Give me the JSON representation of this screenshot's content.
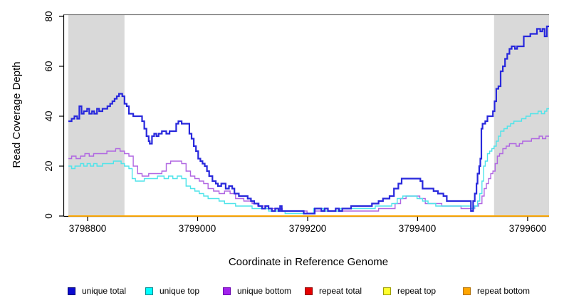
{
  "figure": {
    "xlabel": "Coordinate in Reference Genome",
    "ylabel": "Read Coverage Depth"
  },
  "legend": {
    "items": [
      {
        "label": "unique total",
        "fill": "#0a0ad0",
        "border": "#000070"
      },
      {
        "label": "unique top",
        "fill": "#00ffff",
        "border": "#00868b"
      },
      {
        "label": "unique bottom",
        "fill": "#a222ec",
        "border": "#6a00b0"
      },
      {
        "label": "repeat total",
        "fill": "#e60000",
        "border": "#8b0000"
      },
      {
        "label": "repeat top",
        "fill": "#ffff2e",
        "border": "#9c9c00"
      },
      {
        "label": "repeat bottom",
        "fill": "#ffa500",
        "border": "#b06e00"
      }
    ]
  },
  "chart_data": {
    "type": "line",
    "step": true,
    "title": "",
    "xlabel": "Coordinate in Reference Genome",
    "ylabel": "Read Coverage Depth",
    "xlim": [
      3798765,
      3799639
    ],
    "ylim": [
      0,
      80
    ],
    "grid": false,
    "legend_position": "bottom",
    "x_tick_values": [
      3798800,
      3799000,
      3799200,
      3799400,
      3799600
    ],
    "x_tick_labels": [
      "3798800",
      "3799000",
      "3799200",
      "3799400",
      "3799600"
    ],
    "y_tick_values": [
      0,
      20,
      40,
      60,
      80
    ],
    "y_tick_labels": [
      "0",
      "20",
      "40",
      "60",
      "80"
    ],
    "band_color": "#d9d9d9",
    "frame_top_color": "#808080",
    "axis_color": "#000000",
    "shaded_regions": [
      {
        "x0": 3798765,
        "x1": 3798867
      },
      {
        "x0": 3799539,
        "x1": 3799639
      }
    ],
    "series": [
      {
        "name": "repeat total",
        "color": "#e60000",
        "width": 1.4,
        "points": [
          [
            3798765,
            0
          ],
          [
            3799639,
            0
          ]
        ]
      },
      {
        "name": "repeat top",
        "color": "#ffff00",
        "width": 1.4,
        "points": [
          [
            3798765,
            0
          ],
          [
            3799639,
            0
          ]
        ]
      },
      {
        "name": "repeat bottom",
        "color": "#ffa500",
        "width": 1.6,
        "points": [
          [
            3798765,
            0
          ],
          [
            3799639,
            0
          ]
        ]
      },
      {
        "name": "unique bottom",
        "color": "#b066e2",
        "width": 1.4,
        "points": [
          [
            3798765,
            23
          ],
          [
            3798771,
            24
          ],
          [
            3798779,
            23
          ],
          [
            3798787,
            24
          ],
          [
            3798795,
            25
          ],
          [
            3798803,
            24
          ],
          [
            3798811,
            25
          ],
          [
            3798835,
            26
          ],
          [
            3798851,
            27
          ],
          [
            3798859,
            26
          ],
          [
            3798867,
            25
          ],
          [
            3798875,
            24
          ],
          [
            3798883,
            20
          ],
          [
            3798891,
            17
          ],
          [
            3798899,
            16
          ],
          [
            3798911,
            17
          ],
          [
            3798935,
            18
          ],
          [
            3798943,
            21
          ],
          [
            3798951,
            22
          ],
          [
            3798971,
            21
          ],
          [
            3798979,
            18
          ],
          [
            3798987,
            16
          ],
          [
            3798995,
            15
          ],
          [
            3799003,
            14
          ],
          [
            3799011,
            13
          ],
          [
            3799019,
            11
          ],
          [
            3799029,
            10
          ],
          [
            3799039,
            9
          ],
          [
            3799049,
            10
          ],
          [
            3799059,
            9
          ],
          [
            3799069,
            7
          ],
          [
            3799084,
            6
          ],
          [
            3799099,
            5
          ],
          [
            3799109,
            4
          ],
          [
            3799124,
            3
          ],
          [
            3799154,
            2
          ],
          [
            3799199,
            1
          ],
          [
            3799211,
            2
          ],
          [
            3799329,
            3
          ],
          [
            3799359,
            5
          ],
          [
            3799369,
            7
          ],
          [
            3799379,
            8
          ],
          [
            3799404,
            7
          ],
          [
            3799414,
            5
          ],
          [
            3799444,
            4
          ],
          [
            3799479,
            3
          ],
          [
            3799504,
            4
          ],
          [
            3799511,
            5
          ],
          [
            3799517,
            8
          ],
          [
            3799521,
            11
          ],
          [
            3799525,
            13
          ],
          [
            3799529,
            15
          ],
          [
            3799533,
            17
          ],
          [
            3799537,
            18
          ],
          [
            3799541,
            21
          ],
          [
            3799545,
            24
          ],
          [
            3799549,
            25
          ],
          [
            3799555,
            27
          ],
          [
            3799561,
            28
          ],
          [
            3799567,
            29
          ],
          [
            3799579,
            28
          ],
          [
            3799585,
            29
          ],
          [
            3799591,
            30
          ],
          [
            3799607,
            31
          ],
          [
            3799621,
            32
          ],
          [
            3799627,
            31
          ],
          [
            3799633,
            32
          ],
          [
            3799639,
            32
          ]
        ]
      },
      {
        "name": "unique top",
        "color": "#4fe4ea",
        "width": 1.4,
        "points": [
          [
            3798765,
            20
          ],
          [
            3798771,
            19
          ],
          [
            3798777,
            20
          ],
          [
            3798787,
            21
          ],
          [
            3798793,
            20
          ],
          [
            3798799,
            21
          ],
          [
            3798805,
            20
          ],
          [
            3798811,
            21
          ],
          [
            3798817,
            20
          ],
          [
            3798827,
            21
          ],
          [
            3798847,
            22
          ],
          [
            3798861,
            21
          ],
          [
            3798867,
            20
          ],
          [
            3798875,
            19
          ],
          [
            3798881,
            15
          ],
          [
            3798887,
            14
          ],
          [
            3798903,
            15
          ],
          [
            3798927,
            16
          ],
          [
            3798939,
            15
          ],
          [
            3798947,
            16
          ],
          [
            3798955,
            15
          ],
          [
            3798963,
            16
          ],
          [
            3798971,
            15
          ],
          [
            3798979,
            12
          ],
          [
            3798987,
            11
          ],
          [
            3798995,
            10
          ],
          [
            3799003,
            9
          ],
          [
            3799011,
            8
          ],
          [
            3799019,
            7
          ],
          [
            3799039,
            6
          ],
          [
            3799049,
            5
          ],
          [
            3799069,
            4
          ],
          [
            3799099,
            3
          ],
          [
            3799129,
            2
          ],
          [
            3799159,
            1
          ],
          [
            3799211,
            3
          ],
          [
            3799229,
            2
          ],
          [
            3799259,
            3
          ],
          [
            3799323,
            4
          ],
          [
            3799353,
            5
          ],
          [
            3799363,
            7
          ],
          [
            3799373,
            8
          ],
          [
            3799399,
            7
          ],
          [
            3799409,
            6
          ],
          [
            3799419,
            5
          ],
          [
            3799433,
            4
          ],
          [
            3799497,
            3
          ],
          [
            3799503,
            4
          ],
          [
            3799509,
            6
          ],
          [
            3799513,
            9
          ],
          [
            3799517,
            14
          ],
          [
            3799520,
            20
          ],
          [
            3799523,
            22
          ],
          [
            3799527,
            25
          ],
          [
            3799531,
            26
          ],
          [
            3799535,
            27
          ],
          [
            3799539,
            28
          ],
          [
            3799543,
            30
          ],
          [
            3799547,
            32
          ],
          [
            3799551,
            34
          ],
          [
            3799557,
            35
          ],
          [
            3799563,
            36
          ],
          [
            3799569,
            37
          ],
          [
            3799575,
            38
          ],
          [
            3799589,
            39
          ],
          [
            3799597,
            40
          ],
          [
            3799605,
            41
          ],
          [
            3799619,
            42
          ],
          [
            3799625,
            41
          ],
          [
            3799631,
            42
          ],
          [
            3799635,
            43
          ],
          [
            3799639,
            43
          ]
        ]
      },
      {
        "name": "unique total",
        "color": "#2828dc",
        "width": 2.2,
        "points": [
          [
            3798765,
            38
          ],
          [
            3798771,
            39
          ],
          [
            3798776,
            40
          ],
          [
            3798781,
            39
          ],
          [
            3798785,
            44
          ],
          [
            3798789,
            41
          ],
          [
            3798793,
            42
          ],
          [
            3798799,
            43
          ],
          [
            3798803,
            41
          ],
          [
            3798808,
            42
          ],
          [
            3798812,
            41
          ],
          [
            3798817,
            43
          ],
          [
            3798821,
            42
          ],
          [
            3798827,
            43
          ],
          [
            3798836,
            44
          ],
          [
            3798841,
            45
          ],
          [
            3798845,
            46
          ],
          [
            3798849,
            47
          ],
          [
            3798853,
            48
          ],
          [
            3798857,
            49
          ],
          [
            3798863,
            48
          ],
          [
            3798867,
            45
          ],
          [
            3798871,
            44
          ],
          [
            3798875,
            41
          ],
          [
            3798883,
            40
          ],
          [
            3798899,
            38
          ],
          [
            3798903,
            35
          ],
          [
            3798907,
            32
          ],
          [
            3798911,
            30
          ],
          [
            3798913,
            29
          ],
          [
            3798917,
            32
          ],
          [
            3798921,
            33
          ],
          [
            3798925,
            32
          ],
          [
            3798929,
            33
          ],
          [
            3798935,
            34
          ],
          [
            3798943,
            33
          ],
          [
            3798949,
            34
          ],
          [
            3798961,
            37
          ],
          [
            3798965,
            38
          ],
          [
            3798971,
            37
          ],
          [
            3798985,
            33
          ],
          [
            3798989,
            31
          ],
          [
            3798993,
            28
          ],
          [
            3798997,
            26
          ],
          [
            3799001,
            23
          ],
          [
            3799005,
            22
          ],
          [
            3799009,
            21
          ],
          [
            3799013,
            20
          ],
          [
            3799017,
            18
          ],
          [
            3799021,
            16
          ],
          [
            3799027,
            14
          ],
          [
            3799033,
            13
          ],
          [
            3799037,
            12
          ],
          [
            3799043,
            13
          ],
          [
            3799051,
            11
          ],
          [
            3799057,
            12
          ],
          [
            3799063,
            11
          ],
          [
            3799067,
            9
          ],
          [
            3799075,
            8
          ],
          [
            3799091,
            7
          ],
          [
            3799097,
            6
          ],
          [
            3799103,
            5
          ],
          [
            3799111,
            4
          ],
          [
            3799117,
            3
          ],
          [
            3799123,
            4
          ],
          [
            3799129,
            3
          ],
          [
            3799135,
            2
          ],
          [
            3799141,
            3
          ],
          [
            3799147,
            2
          ],
          [
            3799150,
            4
          ],
          [
            3799153,
            2
          ],
          [
            3799193,
            1
          ],
          [
            3799213,
            3
          ],
          [
            3799225,
            2
          ],
          [
            3799231,
            3
          ],
          [
            3799237,
            2
          ],
          [
            3799251,
            3
          ],
          [
            3799257,
            2
          ],
          [
            3799263,
            3
          ],
          [
            3799279,
            4
          ],
          [
            3799317,
            5
          ],
          [
            3799329,
            6
          ],
          [
            3799337,
            7
          ],
          [
            3799349,
            8
          ],
          [
            3799357,
            11
          ],
          [
            3799365,
            13
          ],
          [
            3799371,
            15
          ],
          [
            3799405,
            14
          ],
          [
            3799409,
            11
          ],
          [
            3799429,
            10
          ],
          [
            3799437,
            9
          ],
          [
            3799447,
            8
          ],
          [
            3799453,
            6
          ],
          [
            3799497,
            2
          ],
          [
            3799501,
            6
          ],
          [
            3799504,
            9
          ],
          [
            3799507,
            13
          ],
          [
            3799509,
            17
          ],
          [
            3799512,
            20
          ],
          [
            3799514,
            23
          ],
          [
            3799516,
            35
          ],
          [
            3799518,
            37
          ],
          [
            3799523,
            38
          ],
          [
            3799527,
            40
          ],
          [
            3799537,
            42
          ],
          [
            3799540,
            46
          ],
          [
            3799543,
            51
          ],
          [
            3799547,
            52
          ],
          [
            3799551,
            58
          ],
          [
            3799555,
            60
          ],
          [
            3799559,
            63
          ],
          [
            3799563,
            65
          ],
          [
            3799567,
            67
          ],
          [
            3799571,
            68
          ],
          [
            3799577,
            67
          ],
          [
            3799581,
            68
          ],
          [
            3799593,
            72
          ],
          [
            3799605,
            73
          ],
          [
            3799617,
            75
          ],
          [
            3799623,
            74
          ],
          [
            3799627,
            75
          ],
          [
            3799631,
            72
          ],
          [
            3799635,
            76
          ],
          [
            3799639,
            76
          ]
        ]
      }
    ]
  }
}
